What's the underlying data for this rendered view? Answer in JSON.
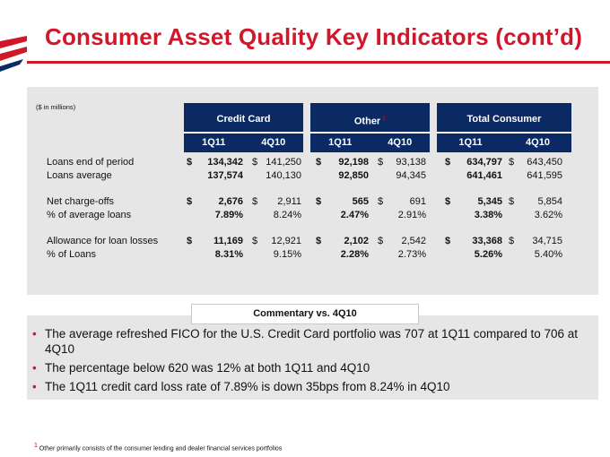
{
  "header": {
    "title": "Consumer Asset Quality Key Indicators (cont’d)"
  },
  "table": {
    "units_note": "($ in millions)",
    "groups": [
      {
        "name": "Credit Card",
        "footnote_mark": ""
      },
      {
        "name": "Other",
        "footnote_mark": "1"
      },
      {
        "name": "Total Consumer",
        "footnote_mark": ""
      }
    ],
    "periods": [
      "1Q11",
      "4Q10"
    ],
    "currency_symbol": "$",
    "rows": [
      {
        "label": "Loans end of period",
        "show_currency": true,
        "values": [
          "134,342",
          "141,250",
          "92,198",
          "93,138",
          "634,797",
          "643,450"
        ]
      },
      {
        "label": "Loans average",
        "show_currency": false,
        "values": [
          "137,574",
          "140,130",
          "92,850",
          "94,345",
          "641,461",
          "641,595"
        ]
      },
      {
        "label": "Net charge-offs",
        "show_currency": true,
        "values": [
          "2,676",
          "2,911",
          "565",
          "691",
          "5,345",
          "5,854"
        ]
      },
      {
        "label": "% of average loans",
        "show_currency": false,
        "values": [
          "7.89%",
          "8.24%",
          "2.47%",
          "2.91%",
          "3.38%",
          "3.62%"
        ]
      },
      {
        "label": "Allowance for loan losses",
        "show_currency": true,
        "values": [
          "11,169",
          "12,921",
          "2,102",
          "2,542",
          "33,368",
          "34,715"
        ]
      },
      {
        "label": "% of Loans",
        "show_currency": false,
        "values": [
          "8.31%",
          "9.15%",
          "2.28%",
          "2.73%",
          "5.26%",
          "5.40%"
        ]
      }
    ]
  },
  "commentary": {
    "title": "Commentary vs. 4Q10",
    "bullets": [
      "The average refreshed FICO for the U.S. Credit Card portfolio was 707 at 1Q11 compared to 706 at 4Q10",
      "The percentage below 620 was 12% at both 1Q11 and 4Q10",
      "The 1Q11 credit card loss rate of 7.89% is down 35bps from 8.24% in 4Q10"
    ]
  },
  "footnote": {
    "mark": "1",
    "text": "Other primarily consists of the consumer lending and dealer financial services portfolios"
  },
  "colors": {
    "brand_red": "#d0182b",
    "header_navy": "#0b2a64",
    "panel_gray": "#e6e6e6"
  }
}
